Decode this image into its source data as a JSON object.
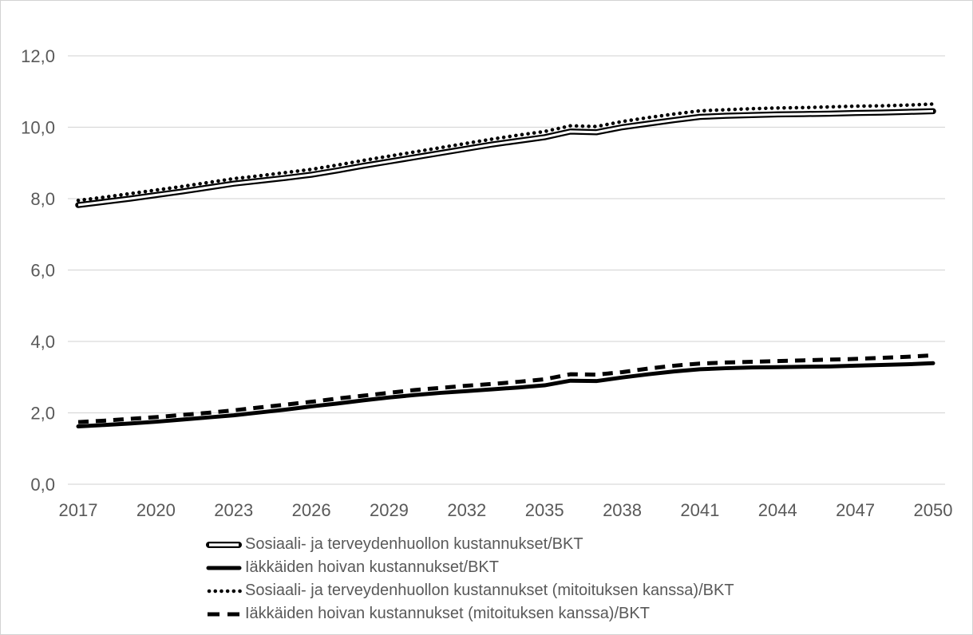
{
  "chart_data": {
    "type": "line",
    "title": "",
    "xlabel": "",
    "ylabel": "",
    "ylim": [
      0,
      12
    ],
    "grid": true,
    "legend_position": "bottom-left",
    "axis_text_color": "#595959",
    "gridline_color": "#d9d9d9",
    "line_color": "#000000",
    "x": [
      2017,
      2018,
      2019,
      2020,
      2021,
      2022,
      2023,
      2024,
      2025,
      2026,
      2027,
      2028,
      2029,
      2030,
      2031,
      2032,
      2033,
      2034,
      2035,
      2036,
      2037,
      2038,
      2039,
      2040,
      2041,
      2042,
      2043,
      2044,
      2045,
      2046,
      2047,
      2048,
      2049,
      2050
    ],
    "xtick_years": [
      2017,
      2020,
      2023,
      2026,
      2029,
      2032,
      2035,
      2038,
      2041,
      2044,
      2047,
      2050
    ],
    "yticks": [
      0,
      2,
      4,
      6,
      8,
      10,
      12
    ],
    "ytick_labels": [
      "0,0",
      "2,0",
      "4,0",
      "6,0",
      "8,0",
      "10,0",
      "12,0"
    ],
    "series": [
      {
        "name": "Sosiaali- ja terveydenhuollon kustannukset/BKT",
        "style": "double-line",
        "color": "#000000",
        "values": [
          7.82,
          7.91,
          8.0,
          8.1,
          8.2,
          8.31,
          8.42,
          8.5,
          8.58,
          8.67,
          8.79,
          8.92,
          9.04,
          9.16,
          9.28,
          9.4,
          9.52,
          9.62,
          9.72,
          9.88,
          9.86,
          10.0,
          10.1,
          10.2,
          10.29,
          10.32,
          10.34,
          10.36,
          10.37,
          10.38,
          10.4,
          10.41,
          10.43,
          10.45
        ]
      },
      {
        "name": "Iäkkäiden hoivan kustannukset/BKT",
        "style": "solid",
        "color": "#000000",
        "values": [
          1.62,
          1.66,
          1.7,
          1.75,
          1.81,
          1.87,
          1.93,
          2.01,
          2.09,
          2.18,
          2.26,
          2.35,
          2.43,
          2.5,
          2.56,
          2.61,
          2.66,
          2.71,
          2.77,
          2.9,
          2.89,
          2.99,
          3.08,
          3.16,
          3.22,
          3.25,
          3.27,
          3.28,
          3.29,
          3.3,
          3.32,
          3.34,
          3.36,
          3.39
        ]
      },
      {
        "name": "Sosiaali- ja terveydenhuollon kustannukset (mitoituksen kanssa)/BKT",
        "style": "dotted",
        "color": "#000000",
        "values": [
          7.95,
          8.04,
          8.14,
          8.24,
          8.34,
          8.45,
          8.56,
          8.64,
          8.73,
          8.82,
          8.94,
          9.07,
          9.19,
          9.31,
          9.43,
          9.55,
          9.67,
          9.78,
          9.88,
          10.04,
          10.02,
          10.16,
          10.27,
          10.37,
          10.46,
          10.49,
          10.52,
          10.54,
          10.55,
          10.57,
          10.59,
          10.6,
          10.62,
          10.65
        ]
      },
      {
        "name": "Iäkkäiden hoivan kustannukset (mitoituksen kanssa)/BKT",
        "style": "dashed",
        "color": "#000000",
        "values": [
          1.74,
          1.78,
          1.83,
          1.88,
          1.94,
          2.0,
          2.07,
          2.15,
          2.23,
          2.31,
          2.4,
          2.48,
          2.56,
          2.64,
          2.7,
          2.76,
          2.81,
          2.87,
          2.94,
          3.08,
          3.07,
          3.14,
          3.24,
          3.32,
          3.38,
          3.41,
          3.43,
          3.45,
          3.47,
          3.49,
          3.51,
          3.54,
          3.57,
          3.61
        ]
      }
    ]
  }
}
